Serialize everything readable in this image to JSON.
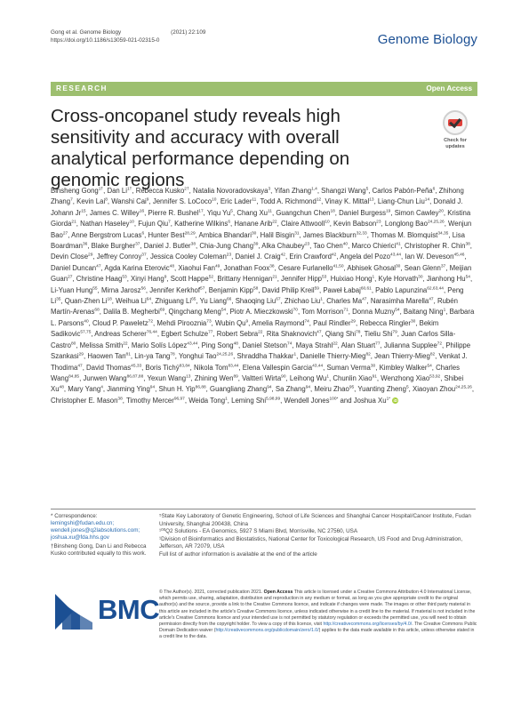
{
  "header": {
    "citation_authors": "Gong et al. Genome Biology",
    "citation_year": "(2021) 22:109",
    "doi": "https://doi.org/10.1186/s13059-021-02315-0",
    "journal_logo": "Genome Biology"
  },
  "banner": {
    "label": "RESEARCH",
    "open_access": "Open Access"
  },
  "title": "Cross-oncopanel study reveals high sensitivity and accuracy with overall analytical performance depending on genomic regions",
  "badge": {
    "line1": "Check for",
    "line2": "updates"
  },
  "authors": [
    [
      "Binsheng Gong",
      "1†"
    ],
    [
      "Dan Li",
      "1†"
    ],
    [
      "Rebecca Kusko",
      "2†"
    ],
    [
      "Natalia Novoradovskaya",
      "3"
    ],
    [
      "Yifan Zhang",
      "1,4"
    ],
    [
      "Shangzi Wang",
      "5"
    ],
    [
      "Carlos Pabón-Peña",
      "6"
    ],
    [
      "Zhihong Zhang",
      "7"
    ],
    [
      "Kevin Lai",
      "8"
    ],
    [
      "Wanshi Cai",
      "9"
    ],
    [
      "Jennifer S. LoCoco",
      "10"
    ],
    [
      "Eric Lader",
      "11"
    ],
    [
      "Todd A. Richmond",
      "12"
    ],
    [
      "Vinay K. Mittal",
      "13"
    ],
    [
      "Liang-Chun Liu",
      "14"
    ],
    [
      "Donald J. Johann Jr",
      "15"
    ],
    [
      "James C. Willey",
      "16"
    ],
    [
      "Pierre R. Bushel",
      "17"
    ],
    [
      "Yiqu Yu",
      "5"
    ],
    [
      "Chang Xu",
      "11"
    ],
    [
      "Guangchun Chen",
      "18"
    ],
    [
      "Daniel Burgess",
      "19"
    ],
    [
      "Simon Cawley",
      "20"
    ],
    [
      "Kristina Giorda",
      "21"
    ],
    [
      "Nathan Haseley",
      "10"
    ],
    [
      "Fujun Qiu",
      "7"
    ],
    [
      "Katherine Wilkins",
      "6"
    ],
    [
      "Hanane Arib",
      "22"
    ],
    [
      "Claire Attwooll",
      "10"
    ],
    [
      "Kevin Babson",
      "23"
    ],
    [
      "Longlong Bao",
      "24,25,26"
    ],
    [
      "Wenjun Bao",
      "27"
    ],
    [
      "Anne Bergstrom Lucas",
      "6"
    ],
    [
      "Hunter Best",
      "28,29"
    ],
    [
      "Ambica Bhandari",
      "30"
    ],
    [
      "Halil Bisgin",
      "31"
    ],
    [
      "James Blackburn",
      "32,33"
    ],
    [
      "Thomas M. Blomquist",
      "34,35"
    ],
    [
      "Lisa Boardman",
      "36"
    ],
    [
      "Blake Burgher",
      "37"
    ],
    [
      "Daniel J. Butler",
      "38"
    ],
    [
      "Chia-Jung Chang",
      "39"
    ],
    [
      "Alka Chaubey",
      "23"
    ],
    [
      "Tao Chen",
      "40"
    ],
    [
      "Marco Chierici",
      "41"
    ],
    [
      "Christopher R. Chin",
      "38"
    ],
    [
      "Devin Close",
      "29"
    ],
    [
      "Jeffrey Conroy",
      "37"
    ],
    [
      "Jessica Cooley Coleman",
      "23"
    ],
    [
      "Daniel J. Craig",
      "42"
    ],
    [
      "Erin Crawford",
      "42"
    ],
    [
      "Angela del Pozo",
      "43,44"
    ],
    [
      "Ian W. Deveson",
      "45,46"
    ],
    [
      "Daniel Duncan",
      "47"
    ],
    [
      "Agda Karina Eterovic",
      "48"
    ],
    [
      "Xiaohui Fan",
      "49"
    ],
    [
      "Jonathan Foox",
      "38"
    ],
    [
      "Cesare Furlanello",
      "41,50"
    ],
    [
      "Abhisek Ghosal",
      "30"
    ],
    [
      "Sean Glenn",
      "37"
    ],
    [
      "Meijian Guan",
      "27"
    ],
    [
      "Christine Haag",
      "53"
    ],
    [
      "Xinyi Hang",
      "9"
    ],
    [
      "Scott Happe",
      "52"
    ],
    [
      "Brittany Hennigan",
      "21"
    ],
    [
      "Jennifer Hipp",
      "53"
    ],
    [
      "Huixiao Hong",
      "1"
    ],
    [
      "Kyle Horvath",
      "30"
    ],
    [
      "Jianhong Hu",
      "54"
    ],
    [
      "Li-Yuan Hung",
      "55"
    ],
    [
      "Mirna Jarosz",
      "56"
    ],
    [
      "Jennifer Kerkhof",
      "57"
    ],
    [
      "Benjamin Kipp",
      "58"
    ],
    [
      "David Philip Kreil",
      "59"
    ],
    [
      "Paweł Łabaj",
      "60,61"
    ],
    [
      "Pablo Lapunzina",
      "62,63,44"
    ],
    [
      "Peng Li",
      "35"
    ],
    [
      "Quan-Zhen Li",
      "18"
    ],
    [
      "Weihua Li",
      "64"
    ],
    [
      "Zhiguang Li",
      "65"
    ],
    [
      "Yu Liang",
      "66"
    ],
    [
      "Shaoqing Liu",
      "67"
    ],
    [
      "Zhichao Liu",
      "1"
    ],
    [
      "Charles Ma",
      "47"
    ],
    [
      "Narasimha Marella",
      "47"
    ],
    [
      "Rubén Martín-Arenas",
      "68"
    ],
    [
      "Dalila B. Megherbi",
      "69"
    ],
    [
      "Qingchang Meng",
      "54"
    ],
    [
      "Piotr A. Mieczkowski",
      "70"
    ],
    [
      "Tom Morrison",
      "71"
    ],
    [
      "Donna Muzny",
      "54"
    ],
    [
      "Baitang Ning",
      "1"
    ],
    [
      "Barbara L. Parsons",
      "40"
    ],
    [
      "Cloud P. Paweletz",
      "72"
    ],
    [
      "Mehdi Pirooznia",
      "73"
    ],
    [
      "Wubin Qu",
      "9"
    ],
    [
      "Amelia Raymond",
      "74"
    ],
    [
      "Paul Rindler",
      "29"
    ],
    [
      "Rebecca Ringler",
      "30"
    ],
    [
      "Bekim Sadikovic",
      "57,75"
    ],
    [
      "Andreas Scherer",
      "76,44"
    ],
    [
      "Egbert Schulze",
      "77"
    ],
    [
      "Robert Sebra",
      "22"
    ],
    [
      "Rita Shaknovich",
      "47"
    ],
    [
      "Qiang Shi",
      "78"
    ],
    [
      "Tieliu Shi",
      "79"
    ],
    [
      "Juan Carlos Silla-Castro",
      "80"
    ],
    [
      "Melissa Smith",
      "22"
    ],
    [
      "Mario Solís López",
      "43,44"
    ],
    [
      "Ping Song",
      "48"
    ],
    [
      "Daniel Stetson",
      "74"
    ],
    [
      "Maya Strahl",
      "22"
    ],
    [
      "Alan Stuart",
      "77"
    ],
    [
      "Julianna Supplee",
      "72"
    ],
    [
      "Philippe Szankasi",
      "29"
    ],
    [
      "Haowen Tan",
      "81"
    ],
    [
      "Lin-ya Tang",
      "78"
    ],
    [
      "Yonghui Tao",
      "24,25,26"
    ],
    [
      "Shraddha Thakkar",
      "1"
    ],
    [
      "Danielle Thierry-Mieg",
      "82"
    ],
    [
      "Jean Thierry-Mieg",
      "82"
    ],
    [
      "Venkat J. Thodima",
      "47"
    ],
    [
      "David Thomas",
      "45,33"
    ],
    [
      "Boris Tichý",
      "83,84"
    ],
    [
      "Nikola Tom",
      "83,44"
    ],
    [
      "Elena Vallespin Garcia",
      "43,44"
    ],
    [
      "Suman Verma",
      "30"
    ],
    [
      "Kimbley Walker",
      "54"
    ],
    [
      "Charles Wang",
      "84,85"
    ],
    [
      "Junwen Wang",
      "86,87,88"
    ],
    [
      "Yexun Wang",
      "13"
    ],
    [
      "Zhining Wen",
      "89"
    ],
    [
      "Valtteri Wirta",
      "90"
    ],
    [
      "Leihong Wu",
      "1"
    ],
    [
      "Chunlin Xiao",
      "91"
    ],
    [
      "Wenzhong Xiao",
      "53,92"
    ],
    [
      "Shibei Xu",
      "48"
    ],
    [
      "Mary Yang",
      "4"
    ],
    [
      "Jianming Ying",
      "94"
    ],
    [
      "Shun H. Yip",
      "86,88"
    ],
    [
      "Guangliang Zhang",
      "94"
    ],
    [
      "Sa Zhang",
      "94"
    ],
    [
      "Meiru Zhao",
      "95"
    ],
    [
      "Yuanting Zheng",
      "5"
    ],
    [
      "Xiaoyan Zhou",
      "24,25,26"
    ],
    [
      "Christopher E. Mason",
      "38"
    ],
    [
      "Timothy Mercer",
      "96,97"
    ],
    [
      "Weida Tong",
      "1"
    ],
    [
      "Leming Shi",
      "5,98,99"
    ],
    [
      "Wendell Jones",
      "100*"
    ],
    [
      "Joshua Xu",
      "1*"
    ]
  ],
  "correspondence": {
    "label": "* Correspondence:",
    "emails": "lemingshi@fudan.edu.cn; wendell.jones@q2labsolutions.com; joshua.xu@fda.hhs.gov",
    "equal_note": "†Binsheng Gong, Dan Li and Rebecca Kusko contributed equally to this work."
  },
  "affiliations": [
    "⁵State Key Laboratory of Genetic Engineering, School of Life Sciences and Shanghai Cancer Hospital/Cancer Institute, Fudan University, Shanghai 200438, China",
    "¹⁰⁰Q2 Solutions - EA Genomics, 5927 S Miami Blvd, Morrisville, NC 27560, USA",
    "¹Division of Bioinformatics and Biostatistics, National Center for Toxicological Research, US Food and Drug Administration, Jefferson, AR 72079, USA",
    "Full list of author information is available at the end of the article"
  ],
  "bmc_logo": "BMC",
  "license": {
    "lead": "© The Author(s). 2021, corrected publication 2021.",
    "oa": "Open Access",
    "text1": "This article is licensed under a Creative Commons Attribution 4.0 International License, which permits use, sharing, adaptation, distribution and reproduction in any medium or format, as long as you give appropriate credit to the original author(s) and the source, provide a link to the Creative Commons licence, and indicate if changes were made. The images or other third party material in this article are included in the article's Creative Commons licence, unless indicated otherwise in a credit line to the material. If material is not included in the article's Creative Commons licence and your intended use is not permitted by statutory regulation or exceeds the permitted use, you will need to obtain permission directly from the copyright holder. To view a copy of this licence, visit",
    "link1": "http://creativecommons.org/licenses/by/4.0/",
    "text2": ". The Creative Commons Public Domain Dedication waiver (",
    "link2": "http://creativecommons.org/publicdomain/zero/1.0/",
    "text3": ") applies to the data made available in this article, unless otherwise stated in a credit line to the data."
  },
  "colors": {
    "banner": "#9dbf6f",
    "journal": "#1b4f93",
    "orcid": "#a6ce39"
  }
}
